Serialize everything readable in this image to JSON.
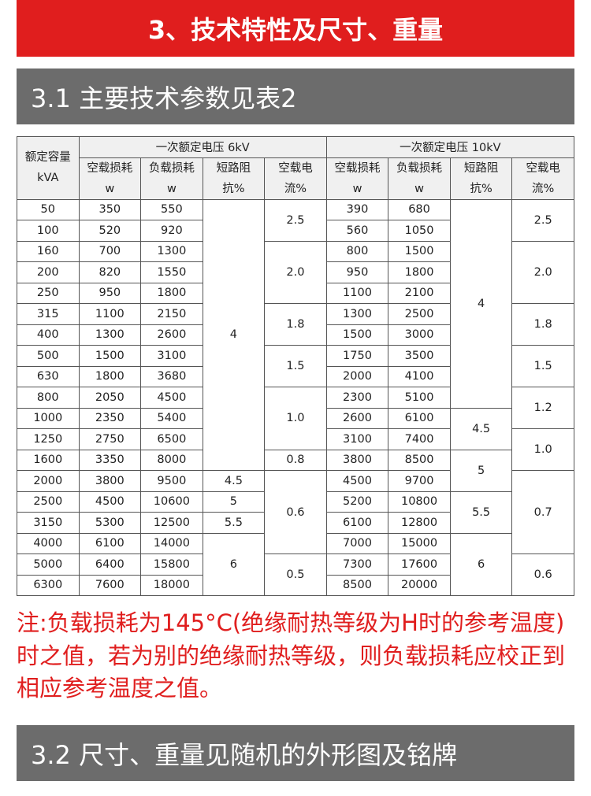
{
  "title": "3、技术特性及尺寸、重量",
  "section1": "3.1 主要技术参数见表2",
  "table": {
    "capacity_header": [
      "额定容量",
      "kVA"
    ],
    "group_6kv": "一次额定电压 6kV",
    "group_10kv": "一次额定电压 10kV",
    "sub_headers": [
      [
        "空载损耗",
        "w"
      ],
      [
        "负载损耗",
        "w"
      ],
      [
        "短路阻",
        "抗%"
      ],
      [
        "空载电",
        "流%"
      ]
    ],
    "rows": [
      {
        "kva": "50",
        "p0_6": "350",
        "pk_6": "550",
        "p0_10": "390",
        "pk_10": "680"
      },
      {
        "kva": "100",
        "p0_6": "520",
        "pk_6": "920",
        "p0_10": "560",
        "pk_10": "1050"
      },
      {
        "kva": "160",
        "p0_6": "700",
        "pk_6": "1300",
        "p0_10": "800",
        "pk_10": "1500"
      },
      {
        "kva": "200",
        "p0_6": "820",
        "pk_6": "1550",
        "p0_10": "950",
        "pk_10": "1800"
      },
      {
        "kva": "250",
        "p0_6": "950",
        "pk_6": "1800",
        "p0_10": "1100",
        "pk_10": "2100"
      },
      {
        "kva": "315",
        "p0_6": "1100",
        "pk_6": "2150",
        "p0_10": "1300",
        "pk_10": "2500"
      },
      {
        "kva": "400",
        "p0_6": "1300",
        "pk_6": "2600",
        "p0_10": "1500",
        "pk_10": "3000"
      },
      {
        "kva": "500",
        "p0_6": "1500",
        "pk_6": "3100",
        "p0_10": "1750",
        "pk_10": "3500"
      },
      {
        "kva": "630",
        "p0_6": "1800",
        "pk_6": "3680",
        "p0_10": "2000",
        "pk_10": "4100"
      },
      {
        "kva": "800",
        "p0_6": "2050",
        "pk_6": "4500",
        "p0_10": "2300",
        "pk_10": "5100"
      },
      {
        "kva": "1000",
        "p0_6": "2350",
        "pk_6": "5400",
        "p0_10": "2600",
        "pk_10": "6100"
      },
      {
        "kva": "1250",
        "p0_6": "2750",
        "pk_6": "6500",
        "p0_10": "3100",
        "pk_10": "7400"
      },
      {
        "kva": "1600",
        "p0_6": "3350",
        "pk_6": "8000",
        "p0_10": "3800",
        "pk_10": "8500"
      },
      {
        "kva": "2000",
        "p0_6": "3800",
        "pk_6": "9500",
        "p0_10": "4500",
        "pk_10": "9700"
      },
      {
        "kva": "2500",
        "p0_6": "4500",
        "pk_6": "10600",
        "p0_10": "5200",
        "pk_10": "10800"
      },
      {
        "kva": "3150",
        "p0_6": "5300",
        "pk_6": "12500",
        "p0_10": "6100",
        "pk_10": "12800"
      },
      {
        "kva": "4000",
        "p0_6": "6100",
        "pk_6": "14000",
        "p0_10": "7000",
        "pk_10": "15000"
      },
      {
        "kva": "5000",
        "p0_6": "6400",
        "pk_6": "15800",
        "p0_10": "7300",
        "pk_10": "17600"
      },
      {
        "kva": "6300",
        "p0_6": "7600",
        "pk_6": "18000",
        "p0_10": "8500",
        "pk_10": "20000"
      }
    ],
    "uk_6": [
      {
        "value": "4",
        "rows": 13
      },
      {
        "value": "4.5",
        "rows": 1
      },
      {
        "value": "5",
        "rows": 1
      },
      {
        "value": "5.5",
        "rows": 1
      },
      {
        "value": "6",
        "rows": 3
      }
    ],
    "i0_6": [
      {
        "value": "2.5",
        "rows": 2
      },
      {
        "value": "2.0",
        "rows": 3
      },
      {
        "value": "1.8",
        "rows": 2
      },
      {
        "value": "1.5",
        "rows": 2
      },
      {
        "value": "1.0",
        "rows": 3
      },
      {
        "value": "0.8",
        "rows": 1
      },
      {
        "value": "0.6",
        "rows": 4
      },
      {
        "value": "0.5",
        "rows": 2
      }
    ],
    "uk_10": [
      {
        "value": "4",
        "rows": 10
      },
      {
        "value": "4.5",
        "rows": 2
      },
      {
        "value": "5",
        "rows": 2
      },
      {
        "value": "5.5",
        "rows": 2
      },
      {
        "value": "6",
        "rows": 3
      }
    ],
    "i0_10": [
      {
        "value": "2.5",
        "rows": 2
      },
      {
        "value": "2.0",
        "rows": 3
      },
      {
        "value": "1.8",
        "rows": 2
      },
      {
        "value": "1.5",
        "rows": 2
      },
      {
        "value": "1.2",
        "rows": 2
      },
      {
        "value": "1.0",
        "rows": 2
      },
      {
        "value": "0.7",
        "rows": 4
      },
      {
        "value": "0.6",
        "rows": 2
      }
    ]
  },
  "note": "注:负载损耗为145°C(绝缘耐热等级为H时的参考温度)时之值，若为别的绝缘耐热等级，则负载损耗应校正到相应参考温度之值。",
  "section2": "3.2 尺寸、重量见随机的外形图及铭牌",
  "colors": {
    "red": "#e01e1e",
    "gray": "#6c6c6c"
  }
}
